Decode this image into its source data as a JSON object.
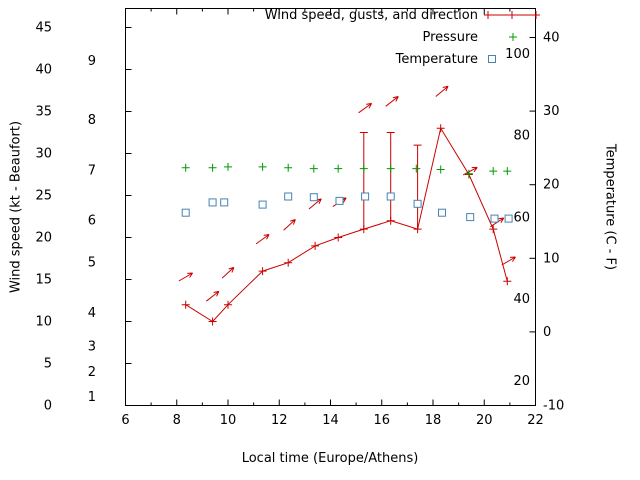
{
  "page": {
    "background": "#ffffff"
  },
  "chart_data": {
    "type": "line",
    "title": "",
    "xlabel": "Local time (Europe/Athens)",
    "ylabel_left": "Wind speed (kt - Beaufort)",
    "ylabel_right": "Temperature (C - F)",
    "x_range": [
      6,
      22
    ],
    "x_major_ticks": [
      6,
      8,
      10,
      12,
      14,
      16,
      18,
      20,
      22
    ],
    "x_minor_step": 1,
    "left_axis": {
      "unit": "kt",
      "ticks": [
        0,
        5,
        10,
        15,
        20,
        25,
        30,
        35,
        40,
        45
      ],
      "beaufort_scale": [
        {
          "bft": 1,
          "kt": 1
        },
        {
          "bft": 2,
          "kt": 4
        },
        {
          "bft": 3,
          "kt": 7
        },
        {
          "bft": 4,
          "kt": 11
        },
        {
          "bft": 5,
          "kt": 17
        },
        {
          "bft": 6,
          "kt": 22
        },
        {
          "bft": 7,
          "kt": 28
        },
        {
          "bft": 8,
          "kt": 34
        },
        {
          "bft": 9,
          "kt": 41
        }
      ]
    },
    "right_axis": {
      "unit": "C",
      "ticks": [
        -10,
        0,
        10,
        20,
        30,
        40
      ],
      "fahrenheit_ticks": [
        20,
        40,
        60,
        80,
        100
      ]
    },
    "legend": [
      {
        "label": "Wind speed, gusts, and direction",
        "color": "#cc0000"
      },
      {
        "label": "Pressure",
        "color": "#009900"
      },
      {
        "label": "Temperature",
        "color": "#4682b4"
      }
    ],
    "series": [
      {
        "name": "Wind speed, gusts, and direction",
        "type": "line_markers_errorbars",
        "axis": "left",
        "color": "#cc0000",
        "points": [
          {
            "x": 8.35,
            "kt": 12
          },
          {
            "x": 9.4,
            "kt": 10
          },
          {
            "x": 10.0,
            "kt": 12
          },
          {
            "x": 11.35,
            "kt": 16
          },
          {
            "x": 12.35,
            "kt": 17
          },
          {
            "x": 13.4,
            "kt": 19
          },
          {
            "x": 14.3,
            "kt": 20
          },
          {
            "x": 15.3,
            "kt": 21,
            "gust": 32.5
          },
          {
            "x": 16.35,
            "kt": 22,
            "gust": 32.5
          },
          {
            "x": 17.4,
            "kt": 21,
            "gust": 31
          },
          {
            "x": 18.3,
            "kt": 33
          },
          {
            "x": 19.4,
            "kt": 27.5
          },
          {
            "x": 20.35,
            "kt": 21
          },
          {
            "x": 20.9,
            "kt": 14.8
          }
        ]
      },
      {
        "name": "Wind direction arrows",
        "type": "arrows",
        "axis": "left",
        "color": "#cc0000",
        "points": [
          {
            "x": 8.35,
            "kt": 15.3,
            "deg": 30
          },
          {
            "x": 9.4,
            "kt": 13,
            "deg": 38
          },
          {
            "x": 10.0,
            "kt": 15.8,
            "deg": 42
          },
          {
            "x": 11.35,
            "kt": 19.8,
            "deg": 36
          },
          {
            "x": 12.4,
            "kt": 21.5,
            "deg": 42
          },
          {
            "x": 13.4,
            "kt": 24,
            "deg": 40
          },
          {
            "x": 14.35,
            "kt": 24.2,
            "deg": 33
          },
          {
            "x": 15.35,
            "kt": 35.4,
            "deg": 36
          },
          {
            "x": 16.4,
            "kt": 36.2,
            "deg": 38
          },
          {
            "x": 18.35,
            "kt": 37.4,
            "deg": 40
          },
          {
            "x": 19.45,
            "kt": 27.9,
            "deg": 28
          },
          {
            "x": 20.5,
            "kt": 21.8,
            "deg": 33
          },
          {
            "x": 20.95,
            "kt": 17.2,
            "deg": 30
          }
        ]
      },
      {
        "name": "Pressure",
        "type": "points_plus",
        "axis": "left",
        "color": "#009900",
        "points": [
          {
            "x": 8.35,
            "kt": 28.3
          },
          {
            "x": 9.4,
            "kt": 28.3
          },
          {
            "x": 10.0,
            "kt": 28.4
          },
          {
            "x": 11.35,
            "kt": 28.4
          },
          {
            "x": 12.35,
            "kt": 28.3
          },
          {
            "x": 13.35,
            "kt": 28.2
          },
          {
            "x": 14.3,
            "kt": 28.2
          },
          {
            "x": 15.3,
            "kt": 28.2
          },
          {
            "x": 16.35,
            "kt": 28.2
          },
          {
            "x": 17.35,
            "kt": 28.2
          },
          {
            "x": 18.3,
            "kt": 28.1
          },
          {
            "x": 19.4,
            "kt": 27.6
          },
          {
            "x": 20.35,
            "kt": 27.9
          },
          {
            "x": 20.9,
            "kt": 27.9
          }
        ]
      },
      {
        "name": "Temperature",
        "type": "points_square",
        "axis": "right",
        "color": "#4682b4",
        "points": [
          {
            "x": 8.35,
            "c": 16.2
          },
          {
            "x": 9.4,
            "c": 17.6
          },
          {
            "x": 9.85,
            "c": 17.6
          },
          {
            "x": 11.35,
            "c": 17.3
          },
          {
            "x": 12.35,
            "c": 18.4
          },
          {
            "x": 13.35,
            "c": 18.3
          },
          {
            "x": 14.35,
            "c": 17.8
          },
          {
            "x": 15.35,
            "c": 18.4
          },
          {
            "x": 16.35,
            "c": 18.4
          },
          {
            "x": 17.4,
            "c": 17.4
          },
          {
            "x": 18.35,
            "c": 16.2
          },
          {
            "x": 19.45,
            "c": 15.6
          },
          {
            "x": 20.4,
            "c": 15.4
          },
          {
            "x": 20.95,
            "c": 15.4
          }
        ]
      }
    ]
  }
}
